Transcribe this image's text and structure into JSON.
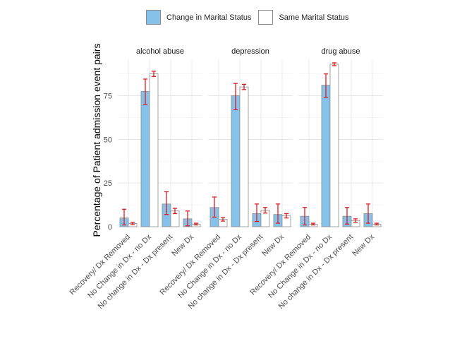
{
  "chart_data": {
    "type": "bar",
    "ylabel": "Percentage of Patient admission event pairs",
    "xlabel": "",
    "ylim": [
      0,
      100
    ],
    "yticks": [
      0,
      25,
      50,
      75
    ],
    "legend_position": "top",
    "grid": true,
    "categories": [
      "Recovery/ Dx Removed",
      "No Change in Dx - no Dx",
      "No change in Dx - Dx present",
      "New Dx"
    ],
    "series_names": [
      "Change in Marital Status",
      "Same Marital Status"
    ],
    "series_colors": [
      "#85c1e9",
      "#ffffff"
    ],
    "error_bar_color": "#e31a1c",
    "panels": [
      {
        "title": "alcohol abuse",
        "series": [
          {
            "name": "Change in Marital Status",
            "values": [
              5,
              77.5,
              13,
              4.5
            ],
            "err_low": [
              1,
              70,
              7,
              0.5
            ],
            "err_high": [
              10,
              84.5,
              20,
              9
            ]
          },
          {
            "name": "Same Marital Status",
            "values": [
              1.8,
              87.5,
              9,
              1.5
            ],
            "err_low": [
              1.2,
              86,
              7.5,
              1
            ],
            "err_high": [
              2.5,
              89,
              10.5,
              2
            ]
          }
        ]
      },
      {
        "title": "depression",
        "series": [
          {
            "name": "Change in Marital Status",
            "values": [
              11,
              75,
              7.5,
              7
            ],
            "err_low": [
              5.5,
              67,
              3,
              2
            ],
            "err_high": [
              17,
              82,
              13,
              13
            ]
          },
          {
            "name": "Same Marital Status",
            "values": [
              4.2,
              80,
              9.5,
              6.2
            ],
            "err_low": [
              3.2,
              78.5,
              7.8,
              5
            ],
            "err_high": [
              5.2,
              81.5,
              11,
              7.5
            ]
          }
        ]
      },
      {
        "title": "drug abuse",
        "series": [
          {
            "name": "Change in Marital Status",
            "values": [
              6,
              81,
              6,
              7.5
            ],
            "err_low": [
              1,
              74,
              1.5,
              2
            ],
            "err_high": [
              11,
              87.5,
              11,
              13
            ]
          },
          {
            "name": "Same Marital Status",
            "values": [
              1.5,
              93,
              3.5,
              1.5
            ],
            "err_low": [
              1,
              92.2,
              2.5,
              1
            ],
            "err_high": [
              2,
              93.8,
              4.5,
              2
            ]
          }
        ]
      }
    ]
  }
}
